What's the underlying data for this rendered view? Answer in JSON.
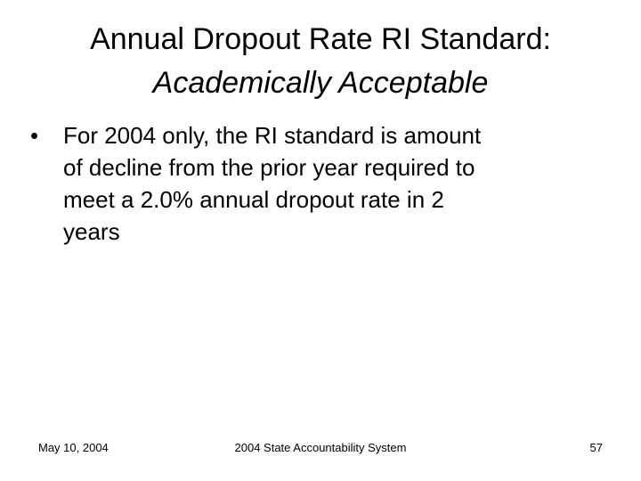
{
  "title": {
    "line1": "Annual Dropout Rate RI Standard:",
    "line2": "Academically Acceptable"
  },
  "bullets": [
    {
      "marker": "•",
      "lines": [
        "For 2004 only, the RI standard is amount",
        "of decline from the prior year required to",
        "meet a 2.0% annual dropout rate in 2",
        "years"
      ]
    }
  ],
  "footer": {
    "date": "May 10, 2004",
    "center": "2004 State Accountability System",
    "page_number": "57"
  }
}
